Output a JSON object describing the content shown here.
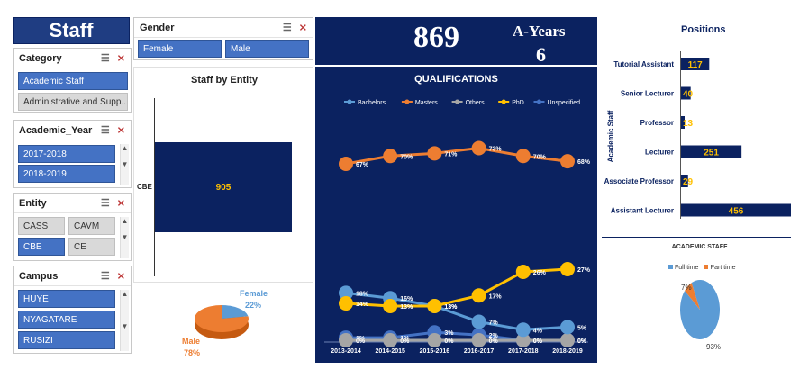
{
  "staff_title": "Staff",
  "slicers": {
    "category": {
      "title": "Category",
      "items": [
        "Academic Staff",
        "Administrative and Supp..."
      ]
    },
    "gender": {
      "title": "Gender",
      "items": [
        "Female",
        "Male"
      ]
    },
    "academic_year": {
      "title": "Academic_Year",
      "items": [
        "2017-2018",
        "2018-2019"
      ]
    },
    "entity": {
      "title": "Entity",
      "items": [
        "CASS",
        "CAVM",
        "CBE",
        "CE"
      ]
    },
    "campus": {
      "title": "Campus",
      "items": [
        "HUYE",
        "NYAGATARE",
        "RUSIZI"
      ]
    }
  },
  "kpi": {
    "total": "869",
    "years_label": "A-Years",
    "years_value": "6"
  },
  "staff_by_entity": {
    "title": "Staff by Entity",
    "category": "CBE",
    "value_label": "905"
  },
  "gender_pie": {
    "female_label": "Female",
    "female_pct": "22%",
    "male_label": "Male",
    "male_pct": "78%",
    "female_value": 22,
    "male_value": 78
  },
  "chart_data": [
    {
      "type": "line",
      "title": "QUALIFICATIONS",
      "categories": [
        "2013-2014",
        "2014-2015",
        "2015-2016",
        "2016-2017",
        "2017-2018",
        "2018-2019"
      ],
      "series": [
        {
          "name": "Bachelors",
          "color": "#5b9bd5",
          "values": [
            18,
            16,
            13,
            7,
            4,
            5
          ]
        },
        {
          "name": "Masters",
          "color": "#ed7d31",
          "values": [
            67,
            70,
            71,
            73,
            70,
            68
          ]
        },
        {
          "name": "Others",
          "color": "#a5a5a5",
          "values": [
            0,
            0,
            0,
            0,
            0,
            0
          ]
        },
        {
          "name": "PhD",
          "color": "#ffc000",
          "values": [
            14,
            13,
            13,
            17,
            26,
            27
          ]
        },
        {
          "name": "Unspecified",
          "color": "#4472c4",
          "values": [
            1,
            1,
            3,
            2,
            0,
            0
          ]
        }
      ],
      "ylim": [
        0,
        80
      ]
    },
    {
      "type": "bar",
      "title": "Positions",
      "ylabel": "Academic Staff",
      "categories": [
        "Tutorial Assistant",
        "Senior Lecturer",
        "Professor",
        "Lecturer",
        "Associate Professor",
        "Assistant Lecturer"
      ],
      "values": [
        117,
        40,
        13,
        251,
        29,
        456
      ]
    },
    {
      "type": "pie",
      "title": "ACADEMIC STAFF",
      "categories": [
        "Full time",
        "Part time"
      ],
      "values": [
        93,
        7
      ],
      "labels": [
        "93%",
        "7%"
      ]
    }
  ],
  "colors": {
    "navy": "#0b2260",
    "accent": "#ffc000",
    "slicer_on": "#4472c4"
  }
}
